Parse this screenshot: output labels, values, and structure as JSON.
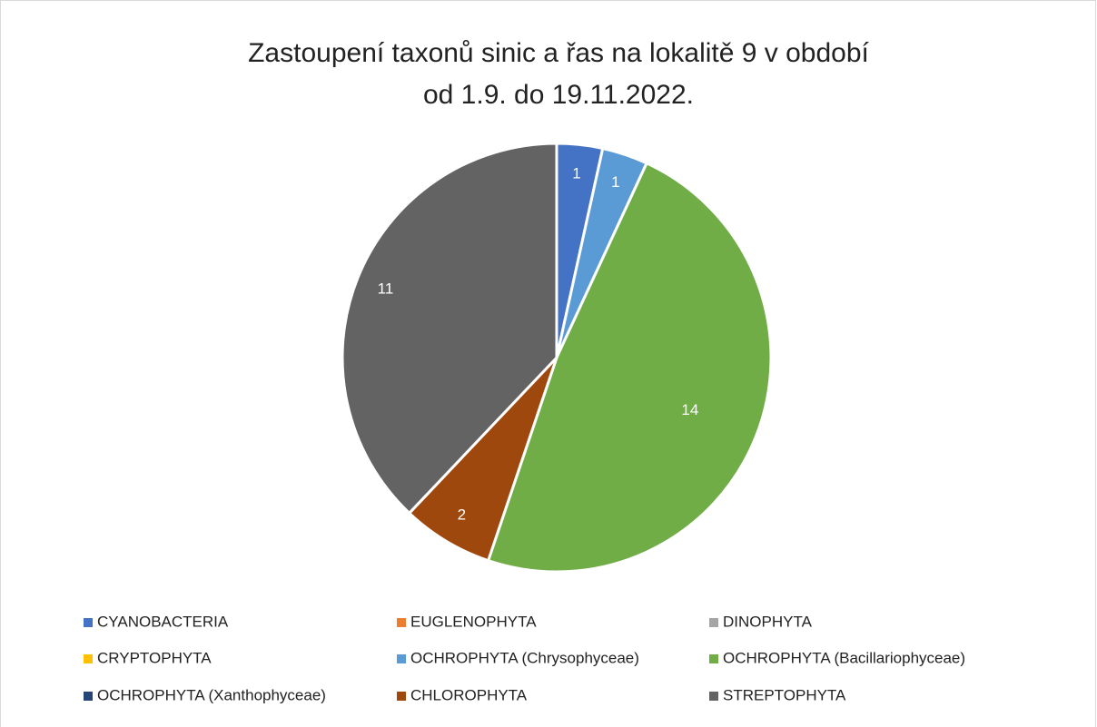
{
  "chart_data": {
    "type": "pie",
    "title": [
      "Zastoupení taxonů sinic a řas na lokalitě 9 v období",
      "od 1.9. do 19.11.2022."
    ],
    "categories": [
      "CYANOBACTERIA",
      "EUGLENOPHYTA",
      "DINOPHYTA",
      "CRYPTOPHYTA",
      "OCHROPHYTA (Chrysophyceae)",
      "OCHROPHYTA (Bacillariophyceae)",
      "OCHROPHYTA (Xanthophyceae)",
      "CHLOROPHYTA",
      "STREPTOPHYTA"
    ],
    "values": [
      1,
      0,
      0,
      0,
      1,
      14,
      0,
      2,
      11
    ],
    "colors": [
      "#4472c4",
      "#ed7d31",
      "#a5a5a5",
      "#ffc000",
      "#5b9bd5",
      "#70ad47",
      "#264478",
      "#9e480e",
      "#636363"
    ],
    "legend": "bottom"
  }
}
